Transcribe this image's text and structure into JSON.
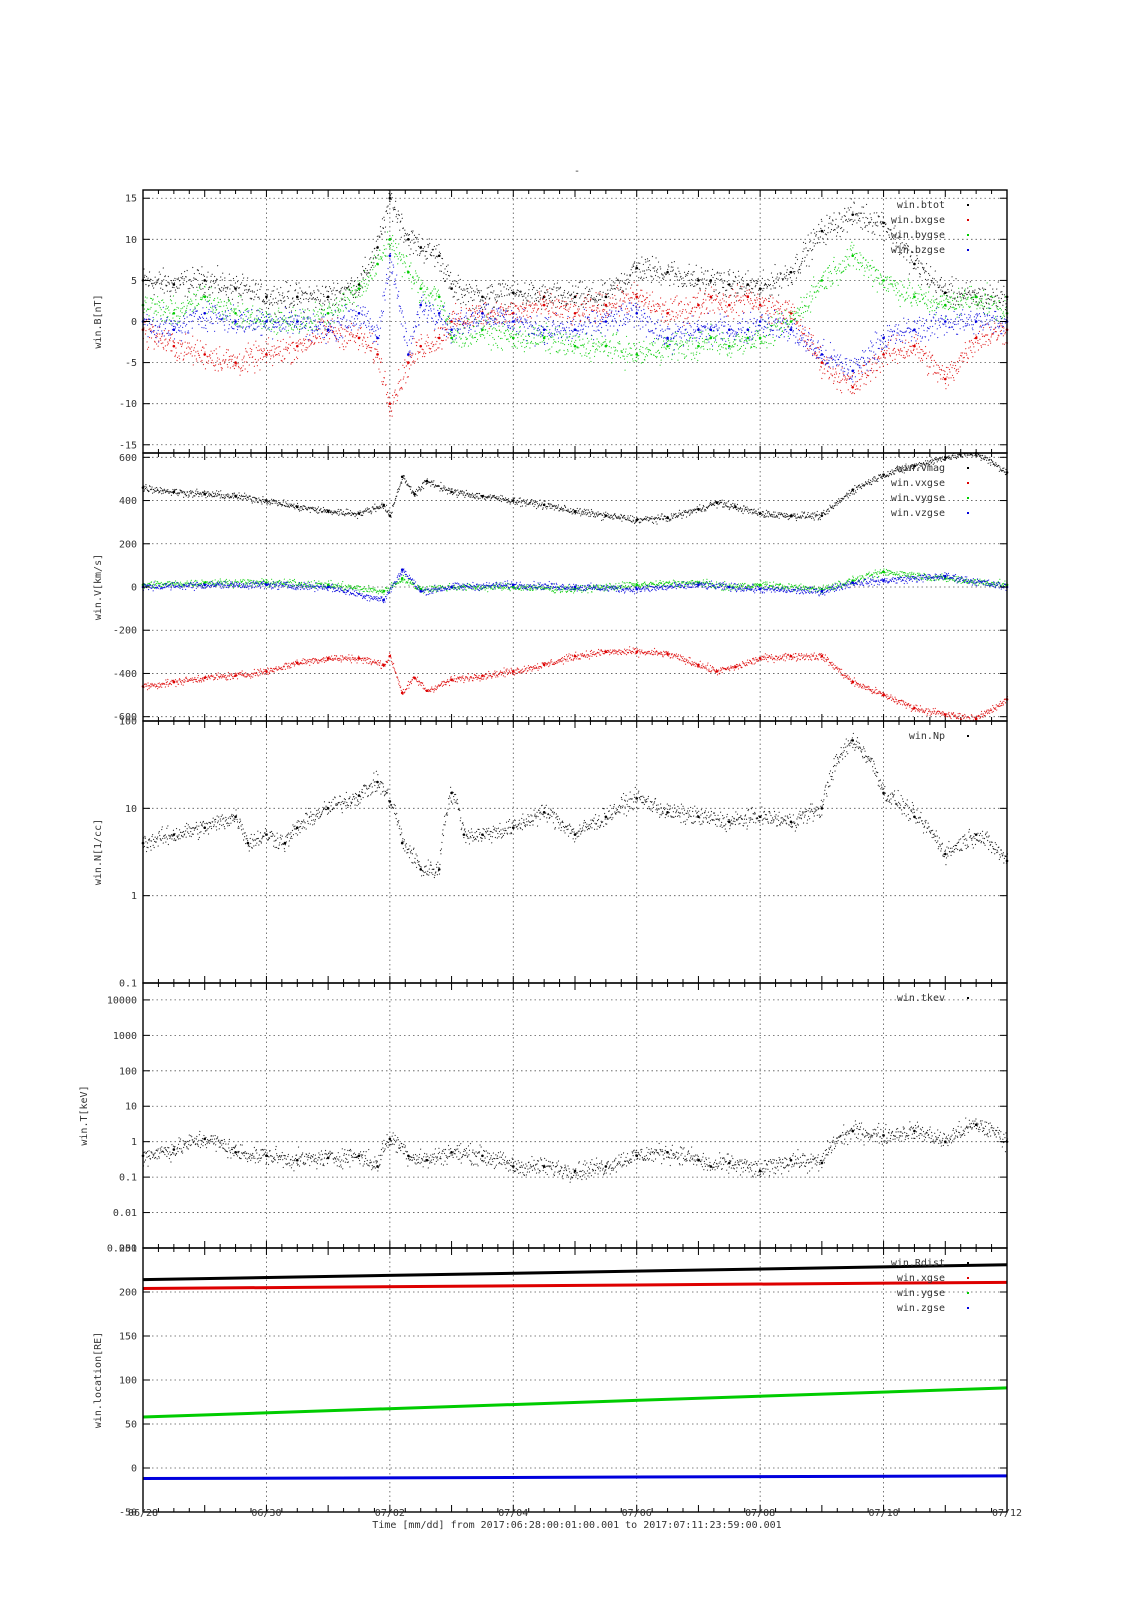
{
  "figure": {
    "title": "-",
    "footer": "Time [mm/dd]  from 2017:06:28:00:01:00.001  to  2017:07:11:23:59:00.001"
  },
  "colors": {
    "black": "#000000",
    "red": "#dd0000",
    "green": "#00cc00",
    "blue": "#0000dd"
  },
  "chart_data": [
    {
      "type": "scatter",
      "ylabel": "win.B[nT]",
      "ylim": [
        -16,
        16
      ],
      "yscale": "linear",
      "yticks": [
        -15,
        -10,
        -5,
        0,
        5,
        10,
        15
      ],
      "xlim": [
        "06/28",
        "07/12"
      ],
      "xticks": [
        "06/28",
        "06/30",
        "07/02",
        "07/04",
        "07/06",
        "07/08",
        "07/10",
        "07/12"
      ],
      "grid": true,
      "legend_position": "top-right",
      "series": [
        {
          "name": "win.btot",
          "color": "black",
          "x": [
            0,
            0.5,
            1,
            1.5,
            2,
            2.5,
            3,
            3.5,
            3.8,
            4.0,
            4.3,
            4.5,
            4.8,
            5,
            5.5,
            6,
            6.5,
            7,
            7.5,
            8,
            8.5,
            9,
            9.2,
            9.5,
            9.8,
            10,
            10.5,
            11,
            11.5,
            12,
            12.5,
            13,
            13.5,
            14
          ],
          "values": [
            5,
            4.5,
            5,
            4,
            3,
            3,
            3,
            4.5,
            9,
            15,
            10,
            9,
            8,
            4,
            3,
            3.5,
            3,
            3,
            3,
            6.5,
            6,
            5,
            5,
            4.5,
            4.5,
            4,
            6,
            11,
            13,
            12,
            7,
            3.5,
            3,
            3
          ]
        },
        {
          "name": "win.bxgse",
          "color": "red",
          "x": [
            0,
            0.5,
            1,
            1.5,
            2,
            2.5,
            3,
            3.5,
            3.8,
            4.0,
            4.3,
            4.5,
            4.8,
            5,
            5.5,
            6,
            6.5,
            7,
            7.5,
            8,
            8.5,
            9,
            9.2,
            9.5,
            9.8,
            10,
            10.5,
            11,
            11.5,
            12,
            12.5,
            13,
            13.5,
            14
          ],
          "values": [
            -1,
            -3,
            -4,
            -5,
            -4,
            -3,
            -1,
            -2,
            -4,
            -10,
            -5,
            -3,
            -2,
            0,
            1,
            1,
            2,
            1,
            2,
            3,
            1,
            2,
            3,
            2,
            3,
            2,
            1,
            -5,
            -8,
            -4,
            -3,
            -7,
            -2,
            -1
          ]
        },
        {
          "name": "win.bygse",
          "color": "green",
          "x": [
            0,
            0.5,
            1,
            1.5,
            2,
            2.5,
            3,
            3.5,
            3.8,
            4.0,
            4.3,
            4.5,
            4.8,
            5,
            5.5,
            6,
            6.5,
            7,
            7.5,
            8,
            8.5,
            9,
            9.2,
            9.5,
            9.8,
            10,
            10.5,
            11,
            11.5,
            12,
            12.5,
            13,
            13.5,
            14
          ],
          "values": [
            2,
            1,
            3,
            1,
            0,
            0,
            1,
            4,
            7,
            10,
            6,
            4,
            3,
            -2,
            -1,
            -2,
            -2,
            -3,
            -3,
            -4,
            -3,
            -3,
            -2,
            -3,
            -2,
            -2,
            0,
            5,
            8,
            5,
            3,
            2,
            3,
            1
          ]
        },
        {
          "name": "win.bzgse",
          "color": "blue",
          "x": [
            0,
            0.5,
            1,
            1.5,
            2,
            2.5,
            3,
            3.5,
            3.8,
            4.0,
            4.3,
            4.5,
            4.8,
            5,
            5.5,
            6,
            6.5,
            7,
            7.5,
            8,
            8.5,
            9,
            9.2,
            9.5,
            9.8,
            10,
            10.5,
            11,
            11.5,
            12,
            12.5,
            13,
            13.5,
            14
          ],
          "values": [
            0,
            -1,
            1,
            0,
            0,
            0,
            -1,
            1,
            -2,
            8,
            -4,
            2,
            1,
            -1,
            1,
            0,
            -1,
            -1,
            0,
            1,
            -2,
            -1,
            -1,
            -1,
            -1,
            0,
            -1,
            -4,
            -6,
            -2,
            -1,
            0,
            0,
            0
          ]
        }
      ]
    },
    {
      "type": "scatter",
      "ylabel": "win.V[km/s]",
      "ylim": [
        -620,
        620
      ],
      "yscale": "linear",
      "yticks": [
        -600,
        -400,
        -200,
        0,
        200,
        400,
        600
      ],
      "xlim": [
        "06/28",
        "07/12"
      ],
      "grid": true,
      "legend_position": "top-right",
      "series": [
        {
          "name": "win.vmag",
          "color": "black",
          "x": [
            0,
            0.5,
            1,
            1.5,
            2,
            2.5,
            3,
            3.5,
            3.9,
            4.0,
            4.2,
            4.4,
            4.6,
            5,
            5.5,
            6,
            6.5,
            7,
            7.5,
            8,
            8.5,
            9,
            9.3,
            9.6,
            10,
            10.5,
            11,
            11.5,
            12,
            12.5,
            13,
            13.5,
            14
          ],
          "values": [
            460,
            440,
            430,
            420,
            400,
            370,
            350,
            340,
            380,
            330,
            510,
            430,
            490,
            440,
            420,
            400,
            380,
            350,
            330,
            310,
            320,
            360,
            390,
            370,
            340,
            330,
            330,
            450,
            520,
            560,
            600,
            620,
            530
          ]
        },
        {
          "name": "win.vxgse",
          "color": "red",
          "x": [
            0,
            0.5,
            1,
            1.5,
            2,
            2.5,
            3,
            3.5,
            3.9,
            4.0,
            4.2,
            4.4,
            4.6,
            5,
            5.5,
            6,
            6.5,
            7,
            7.5,
            8,
            8.5,
            9,
            9.3,
            9.6,
            10,
            10.5,
            11,
            11.5,
            12,
            12.5,
            13,
            13.5,
            14
          ],
          "values": [
            -460,
            -440,
            -420,
            -410,
            -390,
            -350,
            -330,
            -330,
            -360,
            -320,
            -490,
            -420,
            -480,
            -430,
            -410,
            -390,
            -360,
            -320,
            -300,
            -300,
            -310,
            -360,
            -390,
            -370,
            -330,
            -320,
            -320,
            -440,
            -500,
            -560,
            -590,
            -610,
            -520
          ]
        },
        {
          "name": "win.vygse",
          "color": "green",
          "x": [
            0,
            1,
            2,
            3,
            3.9,
            4.2,
            4.5,
            5,
            6,
            7,
            8,
            9,
            9.5,
            10,
            11,
            11.5,
            12,
            13,
            14
          ],
          "values": [
            10,
            20,
            20,
            10,
            -20,
            40,
            -10,
            0,
            0,
            -10,
            10,
            20,
            0,
            10,
            -10,
            30,
            70,
            40,
            10
          ]
        },
        {
          "name": "win.vzgse",
          "color": "blue",
          "x": [
            0,
            1,
            2,
            3,
            3.9,
            4.2,
            4.5,
            5,
            6,
            7,
            8,
            9,
            9.5,
            10,
            11,
            11.5,
            12,
            13,
            14
          ],
          "values": [
            0,
            10,
            10,
            0,
            -60,
            80,
            -20,
            0,
            10,
            0,
            -10,
            10,
            0,
            -10,
            -20,
            20,
            30,
            50,
            0
          ]
        }
      ]
    },
    {
      "type": "scatter",
      "ylabel": "win.N[1/cc]",
      "ylim": [
        0.1,
        100
      ],
      "yscale": "log",
      "yticks": [
        0.1,
        1,
        10,
        100
      ],
      "ytick_labels": [
        "0.1",
        "1",
        "10",
        "100"
      ],
      "xlim": [
        "06/28",
        "07/12"
      ],
      "grid": true,
      "legend_position": "top-right",
      "series": [
        {
          "name": "win.Np",
          "color": "black",
          "x": [
            0,
            0.5,
            1,
            1.5,
            1.7,
            2,
            2.3,
            2.5,
            3,
            3.5,
            3.8,
            4,
            4.2,
            4.5,
            4.8,
            5,
            5.2,
            5.5,
            6,
            6.5,
            7,
            7.5,
            8,
            8.5,
            9,
            9.5,
            10,
            10.5,
            11,
            11.5,
            12,
            12.5,
            13,
            13.5,
            14
          ],
          "values": [
            4,
            5,
            6,
            8,
            4,
            5,
            4,
            6,
            10,
            14,
            20,
            12,
            4,
            2,
            2,
            15,
            5,
            5,
            6,
            9,
            5,
            8,
            13,
            9,
            8,
            7,
            8,
            7,
            10,
            60,
            15,
            8,
            3,
            5,
            2.5
          ]
        }
      ]
    },
    {
      "type": "scatter",
      "ylabel": "win.T[keV]",
      "ylim": [
        0.001,
        30000
      ],
      "yscale": "log",
      "yticks": [
        0.001,
        0.01,
        0.1,
        1,
        10,
        100,
        1000,
        10000
      ],
      "ytick_labels": [
        "0.001",
        "0.01",
        "0.1",
        "1",
        "10",
        "100",
        "1000",
        "10000"
      ],
      "xlim": [
        "06/28",
        "07/12"
      ],
      "grid": true,
      "legend_position": "top-right",
      "series": [
        {
          "name": "win.tkev",
          "color": "black",
          "x": [
            0,
            0.5,
            1,
            1.5,
            2,
            2.5,
            3,
            3.5,
            3.8,
            4,
            4.3,
            4.6,
            5,
            5.5,
            6,
            6.5,
            7,
            7.5,
            8,
            8.5,
            9,
            9.2,
            9.5,
            10,
            10.5,
            11,
            11.5,
            12,
            12.5,
            13,
            13.5,
            14
          ],
          "values": [
            0.4,
            0.6,
            1.2,
            0.5,
            0.4,
            0.3,
            0.35,
            0.4,
            0.2,
            1.2,
            0.4,
            0.3,
            0.5,
            0.4,
            0.2,
            0.2,
            0.15,
            0.2,
            0.4,
            0.5,
            0.3,
            0.2,
            0.25,
            0.15,
            0.3,
            0.25,
            2,
            1.5,
            2,
            1,
            3,
            1
          ]
        }
      ]
    },
    {
      "type": "line",
      "ylabel": "win.location[RE]",
      "ylim": [
        -50,
        250
      ],
      "yscale": "linear",
      "yticks": [
        -50,
        0,
        50,
        100,
        150,
        200,
        250
      ],
      "xlim": [
        "06/28",
        "07/12"
      ],
      "grid": true,
      "legend_position": "top-right",
      "series": [
        {
          "name": "win.Rdist",
          "color": "black",
          "x": [
            0,
            14
          ],
          "values": [
            214,
            231
          ]
        },
        {
          "name": "win.xgse",
          "color": "red",
          "x": [
            0,
            14
          ],
          "values": [
            204,
            211
          ]
        },
        {
          "name": "win.ygse",
          "color": "green",
          "x": [
            0,
            14
          ],
          "values": [
            58,
            91
          ]
        },
        {
          "name": "win.zgse",
          "color": "blue",
          "x": [
            0,
            14
          ],
          "values": [
            -12,
            -9
          ]
        }
      ]
    }
  ]
}
